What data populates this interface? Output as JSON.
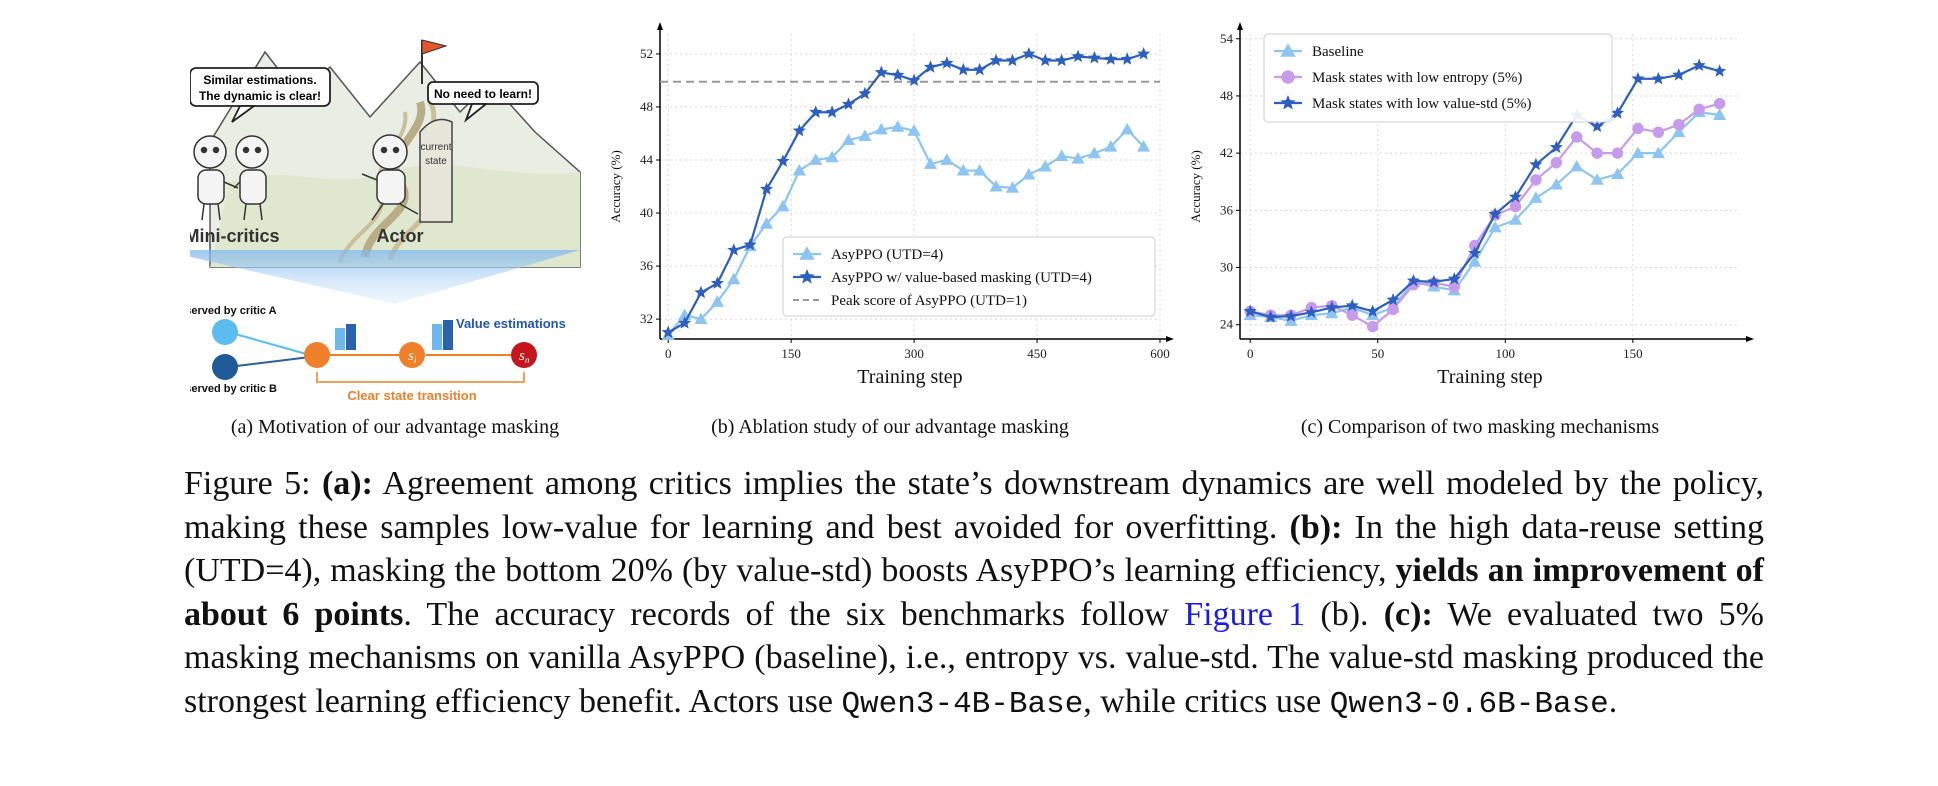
{
  "panel_a": {
    "bubble_left_line1": "Similar estimations.",
    "bubble_left_line2": "The dynamic is clear!",
    "bubble_right": "No need to learn!",
    "sign_line1": "current",
    "sign_line2": "state",
    "label_minicritics": "Mini-critics",
    "label_actor": "Actor",
    "observed_a": "Observed by critic A",
    "observed_b": "Observed by critic B",
    "value_estimations": "Value estimations",
    "clear_transition": "Clear state transition",
    "node_si": "s",
    "node_si_sub": "i",
    "node_sn": "s",
    "node_sn_sub": "n",
    "colors": {
      "critic_a": "#5bbcf0",
      "critic_b": "#1f5a99",
      "state": "#f07f2a",
      "terminal": "#c4161c",
      "value_text": "#2155b8",
      "transition_text": "#f07f2a"
    }
  },
  "chart_data": [
    {
      "type": "line",
      "panel": "b",
      "xlabel": "Training step",
      "ylabel": "Accuracy (%)",
      "xlim": [
        -10,
        600
      ],
      "ylim": [
        30.5,
        53.5
      ],
      "xticks": [
        0,
        150,
        300,
        450,
        600
      ],
      "yticks": [
        32,
        36,
        40,
        44,
        48,
        52
      ],
      "legend_position": "bottom-right",
      "series": [
        {
          "name": "AsyPPO (UTD=4)",
          "marker": "triangle",
          "color": "#8ec4f2",
          "x": [
            0,
            20,
            40,
            60,
            80,
            100,
            120,
            140,
            160,
            180,
            200,
            220,
            240,
            260,
            280,
            300,
            320,
            340,
            360,
            380,
            400,
            420,
            440,
            460,
            480,
            500,
            520,
            540,
            560,
            580
          ],
          "y": [
            30.8,
            32.3,
            32.0,
            33.3,
            35.0,
            37.5,
            39.2,
            40.5,
            43.2,
            44.0,
            44.2,
            45.5,
            45.8,
            46.3,
            46.5,
            46.2,
            43.7,
            44.0,
            43.2,
            43.2,
            42.0,
            41.9,
            42.9,
            43.5,
            44.3,
            44.1,
            44.5,
            45.0,
            46.3,
            45.0
          ]
        },
        {
          "name": "AsyPPO w/ value-based masking (UTD=4)",
          "marker": "star",
          "color": "#2c5fc0",
          "x": [
            0,
            20,
            40,
            60,
            80,
            100,
            120,
            140,
            160,
            180,
            200,
            220,
            240,
            260,
            280,
            300,
            320,
            340,
            360,
            380,
            400,
            420,
            440,
            460,
            480,
            500,
            520,
            540,
            560,
            580
          ],
          "y": [
            31.0,
            31.7,
            34.0,
            34.7,
            37.2,
            37.6,
            41.8,
            43.9,
            46.2,
            47.6,
            47.6,
            48.2,
            49.0,
            50.6,
            50.4,
            50.0,
            51.0,
            51.3,
            50.8,
            50.8,
            51.5,
            51.5,
            52.0,
            51.5,
            51.5,
            51.8,
            51.7,
            51.6,
            51.6,
            52.0
          ]
        }
      ],
      "reference_line": {
        "name": "Peak score of AsyPPO (UTD=1)",
        "y": 49.9,
        "color": "#999999",
        "style": "dashed"
      }
    },
    {
      "type": "line",
      "panel": "c",
      "xlabel": "Training step",
      "ylabel": "Accuracy (%)",
      "xlim": [
        -4,
        192
      ],
      "ylim": [
        22.5,
        54.5
      ],
      "xticks": [
        0,
        50,
        100,
        150
      ],
      "yticks": [
        24,
        30,
        36,
        42,
        48,
        54
      ],
      "legend_position": "top-left",
      "series": [
        {
          "name": "Baseline",
          "marker": "triangle",
          "color": "#8ec4f2",
          "x": [
            0,
            8,
            16,
            24,
            32,
            40,
            48,
            56,
            64,
            72,
            80,
            88,
            96,
            104,
            112,
            120,
            128,
            136,
            144,
            152,
            160,
            168,
            176,
            184
          ],
          "y": [
            25.0,
            24.8,
            24.4,
            25.0,
            25.2,
            25.8,
            25.0,
            25.8,
            28.5,
            28.0,
            27.6,
            30.6,
            34.2,
            35.0,
            37.3,
            38.7,
            40.6,
            39.2,
            39.8,
            42.0,
            42.0,
            44.2,
            46.3,
            46.0
          ]
        },
        {
          "name": "Mask states with low entropy (5%)",
          "marker": "circle",
          "color": "#c79bec",
          "x": [
            0,
            8,
            16,
            24,
            32,
            40,
            48,
            56,
            64,
            72,
            80,
            88,
            96,
            104,
            112,
            120,
            128,
            136,
            144,
            152,
            160,
            168,
            176,
            184
          ],
          "y": [
            25.4,
            25.0,
            25.0,
            25.8,
            26.0,
            25.0,
            23.8,
            25.6,
            28.2,
            28.4,
            28.0,
            32.3,
            35.5,
            36.4,
            39.2,
            41.0,
            43.7,
            42.0,
            42.0,
            44.6,
            44.2,
            45.0,
            46.6,
            47.2
          ]
        },
        {
          "name": "Mask states with low value-std (5%)",
          "marker": "star",
          "color": "#2c5fc0",
          "x": [
            0,
            8,
            16,
            24,
            32,
            40,
            48,
            56,
            64,
            72,
            80,
            88,
            96,
            104,
            112,
            120,
            128,
            136,
            144,
            152,
            160,
            168,
            176,
            184
          ],
          "y": [
            25.4,
            24.8,
            24.9,
            25.3,
            25.8,
            26.0,
            25.4,
            26.6,
            28.6,
            28.5,
            28.8,
            31.5,
            35.6,
            37.4,
            40.8,
            42.6,
            46.0,
            44.8,
            46.2,
            49.8,
            49.8,
            50.2,
            51.2,
            50.6
          ]
        }
      ]
    }
  ],
  "captions": {
    "a": "(a) Motivation of our advantage masking",
    "b": "(b) Ablation study of our advantage masking",
    "c": "(c) Comparison of two masking mechanisms"
  },
  "figure_caption": {
    "label": "Figure 5:",
    "a_tag": "(a):",
    "a_text": " Agreement among critics implies the state’s downstream dynamics are well modeled by the policy, making these samples low-value for learning and best avoided for overfitting. ",
    "b_tag": "(b):",
    "b_text1": " In the high data-reuse setting (UTD=4), masking the bottom 20% (by value-std) boosts AsyPPO’s learning efficiency, ",
    "b_bold": "yields an improvement of about 6 points",
    "b_text2": ". The accuracy records of the six benchmarks follow ",
    "b_link": "Figure 1",
    "b_text3": " (b). ",
    "c_tag": "(c):",
    "c_text1": " We evaluated two 5% masking mechanisms on vanilla AsyPPO (baseline), i.e., entropy vs. value-std. The value-std masking produced the strongest learning efficiency benefit. Actors use ",
    "c_mono1": "Qwen3-4B-Base",
    "c_text2": ", while critics use ",
    "c_mono2": "Qwen3-0.6B-Base",
    "c_text3": "."
  }
}
